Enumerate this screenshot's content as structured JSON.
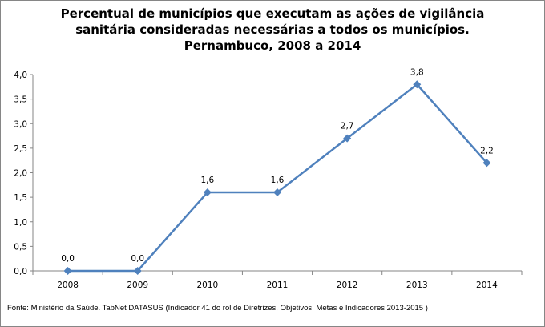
{
  "chart_data": {
    "type": "line",
    "title_lines": [
      "Percentual de municípios que executam as ações de vigilância",
      "sanitária consideradas necessárias a todos os municípios.",
      "Pernambuco, 2008 a 2014"
    ],
    "categories": [
      "2008",
      "2009",
      "2010",
      "2011",
      "2012",
      "2013",
      "2014"
    ],
    "series": [
      {
        "name": "Percentual",
        "values": [
          0.0,
          0.0,
          1.6,
          1.6,
          2.7,
          3.8,
          2.2
        ],
        "labels": [
          "0,0",
          "0,0",
          "1,6",
          "1,6",
          "2,7",
          "3,8",
          "2,2"
        ],
        "color": "#4F81BD"
      }
    ],
    "yticks": [
      "0,0",
      "0,5",
      "1,0",
      "1,5",
      "2,0",
      "2,5",
      "3,0",
      "3,5",
      "4,0"
    ],
    "ylim": [
      0,
      4
    ],
    "xlabel": "",
    "ylabel": "",
    "grid": false,
    "legend": "none",
    "source": "Fonte: Ministério da Saúde. TabNet DATASUS (Indicador 41 do rol de Diretrizes, Objetivos, Metas e Indicadores 2013-2015 )"
  }
}
